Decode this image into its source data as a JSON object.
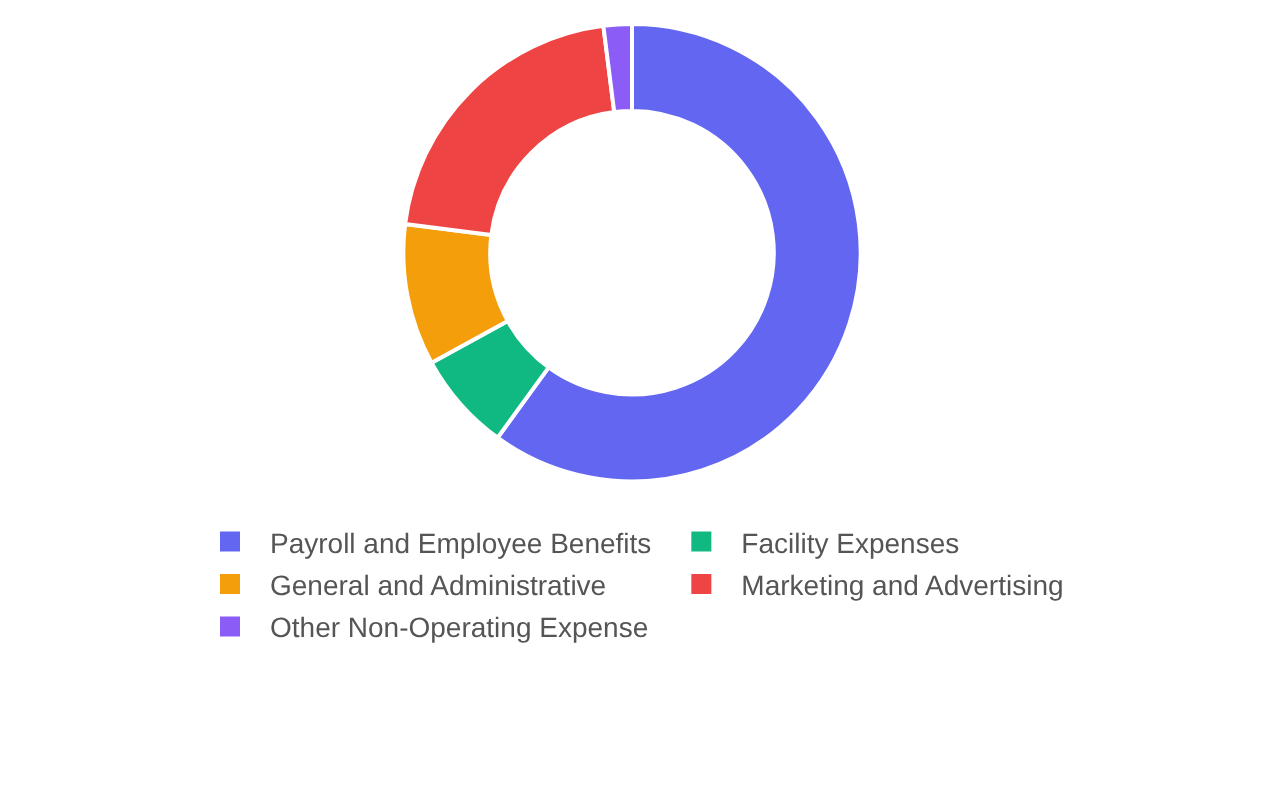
{
  "chart_data": {
    "type": "donut",
    "categories": [
      "Payroll and Employee Benefits",
      "Facility Expenses",
      "General and Administrative",
      "Marketing and Advertising",
      "Other Non-Operating Expense"
    ],
    "values": [
      60,
      7,
      10,
      21,
      2
    ],
    "colors": [
      "#6366f1",
      "#10b981",
      "#f59e0b",
      "#ef4444",
      "#8b5cf6"
    ],
    "legend": "bottom"
  }
}
